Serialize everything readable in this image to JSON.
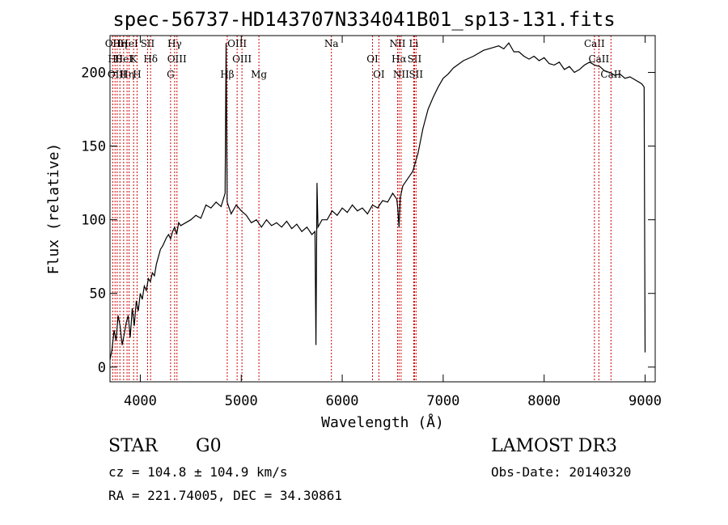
{
  "title": "spec-56737-HD143707N334041B01_sp13-131.fits",
  "info": {
    "object_class": "STAR",
    "subclass": "G0",
    "survey": "LAMOST DR3",
    "cz": "cz = 104.8 ± 104.9 km/s",
    "obs_date": "Obs-Date: 20140320",
    "radec": "RA = 221.74005, DEC =  34.30861"
  },
  "chart_data": {
    "type": "line",
    "title": "spec-56737-HD143707N334041B01_sp13-131.fits",
    "xlabel": "Wavelength (Å)",
    "ylabel": "Flux (relative)",
    "xlim": [
      3700,
      9100
    ],
    "ylim": [
      -10,
      225
    ],
    "xticks": [
      4000,
      5000,
      6000,
      7000,
      8000,
      9000
    ],
    "yticks": [
      0,
      50,
      100,
      150,
      200
    ],
    "series": [
      {
        "name": "flux",
        "x": [
          3700,
          3720,
          3740,
          3760,
          3780,
          3800,
          3820,
          3840,
          3860,
          3880,
          3900,
          3920,
          3940,
          3960,
          3980,
          4000,
          4020,
          4040,
          4060,
          4080,
          4100,
          4120,
          4140,
          4160,
          4180,
          4200,
          4220,
          4240,
          4260,
          4280,
          4300,
          4320,
          4340,
          4360,
          4380,
          4400,
          4450,
          4500,
          4550,
          4600,
          4650,
          4700,
          4750,
          4800,
          4840,
          4850,
          4860,
          4900,
          4950,
          5000,
          5050,
          5100,
          5150,
          5200,
          5250,
          5300,
          5350,
          5400,
          5450,
          5500,
          5550,
          5600,
          5650,
          5700,
          5730,
          5740,
          5750,
          5760,
          5800,
          5850,
          5900,
          5950,
          6000,
          6050,
          6100,
          6150,
          6200,
          6250,
          6300,
          6350,
          6400,
          6450,
          6500,
          6540,
          6550,
          6563,
          6575,
          6600,
          6650,
          6700,
          6750,
          6800,
          6850,
          6900,
          6950,
          7000,
          7050,
          7100,
          7200,
          7300,
          7400,
          7500,
          7550,
          7600,
          7650,
          7700,
          7750,
          7800,
          7850,
          7900,
          7950,
          8000,
          8050,
          8100,
          8150,
          8200,
          8250,
          8300,
          8350,
          8400,
          8450,
          8500,
          8550,
          8600,
          8650,
          8700,
          8750,
          8800,
          8850,
          8900,
          8950,
          8970,
          8990,
          9000
        ],
        "y": [
          5,
          12,
          25,
          18,
          35,
          28,
          15,
          22,
          30,
          35,
          20,
          40,
          28,
          45,
          38,
          50,
          46,
          55,
          52,
          60,
          58,
          64,
          62,
          70,
          75,
          80,
          82,
          85,
          88,
          90,
          87,
          92,
          95,
          90,
          98,
          96,
          98,
          100,
          103,
          101,
          110,
          108,
          112,
          109,
          118,
          220,
          112,
          104,
          110,
          106,
          103,
          98,
          100,
          95,
          100,
          96,
          98,
          95,
          99,
          94,
          97,
          92,
          95,
          90,
          92,
          15,
          125,
          95,
          100,
          100,
          106,
          103,
          108,
          105,
          110,
          106,
          108,
          104,
          110,
          108,
          113,
          112,
          118,
          114,
          108,
          95,
          115,
          123,
          128,
          133,
          145,
          162,
          175,
          183,
          190,
          196,
          199,
          203,
          208,
          211,
          215,
          217,
          218,
          216,
          220,
          214,
          214,
          211,
          209,
          211,
          208,
          210,
          206,
          205,
          207,
          202,
          204,
          200,
          202,
          205,
          207,
          205,
          204,
          201,
          200,
          198,
          199,
          196,
          197,
          195,
          193,
          192,
          190,
          10
        ],
        "color": "#000000"
      }
    ],
    "lines": [
      {
        "wl": 3727,
        "label": "OII"
      },
      {
        "wl": 3750,
        "label": "Hθ"
      },
      {
        "wl": 3771,
        "label": "OIII"
      },
      {
        "wl": 3798,
        "label": "Hη"
      },
      {
        "wl": 3835,
        "label": "HeI"
      },
      {
        "wl": 3869,
        "label": "Hη"
      },
      {
        "wl": 3889,
        "label": "HeI"
      },
      {
        "wl": 3934,
        "label": "K"
      },
      {
        "wl": 3968,
        "label": "H"
      },
      {
        "wl": 4072,
        "label": "SII"
      },
      {
        "wl": 4102,
        "label": "Hδ"
      },
      {
        "wl": 4300,
        "label": "G"
      },
      {
        "wl": 4340,
        "label": "Hγ"
      },
      {
        "wl": 4363,
        "label": "OIII"
      },
      {
        "wl": 4861,
        "label": "Hβ"
      },
      {
        "wl": 4959,
        "label": "OIII"
      },
      {
        "wl": 5007,
        "label": "OIII"
      },
      {
        "wl": 5175,
        "label": "Mg"
      },
      {
        "wl": 5893,
        "label": "Na"
      },
      {
        "wl": 6300,
        "label": "OI"
      },
      {
        "wl": 6363,
        "label": "OI"
      },
      {
        "wl": 6548,
        "label": "NII"
      },
      {
        "wl": 6563,
        "label": "Hα"
      },
      {
        "wl": 6583,
        "label": "NII"
      },
      {
        "wl": 6708,
        "label": "Li"
      },
      {
        "wl": 6716,
        "label": "SII"
      },
      {
        "wl": 6731,
        "label": "SII"
      },
      {
        "wl": 8498,
        "label": "CaII"
      },
      {
        "wl": 8542,
        "label": "CaII"
      },
      {
        "wl": 8662,
        "label": "CaII"
      }
    ],
    "line_color": "#d00000",
    "grid": false
  }
}
